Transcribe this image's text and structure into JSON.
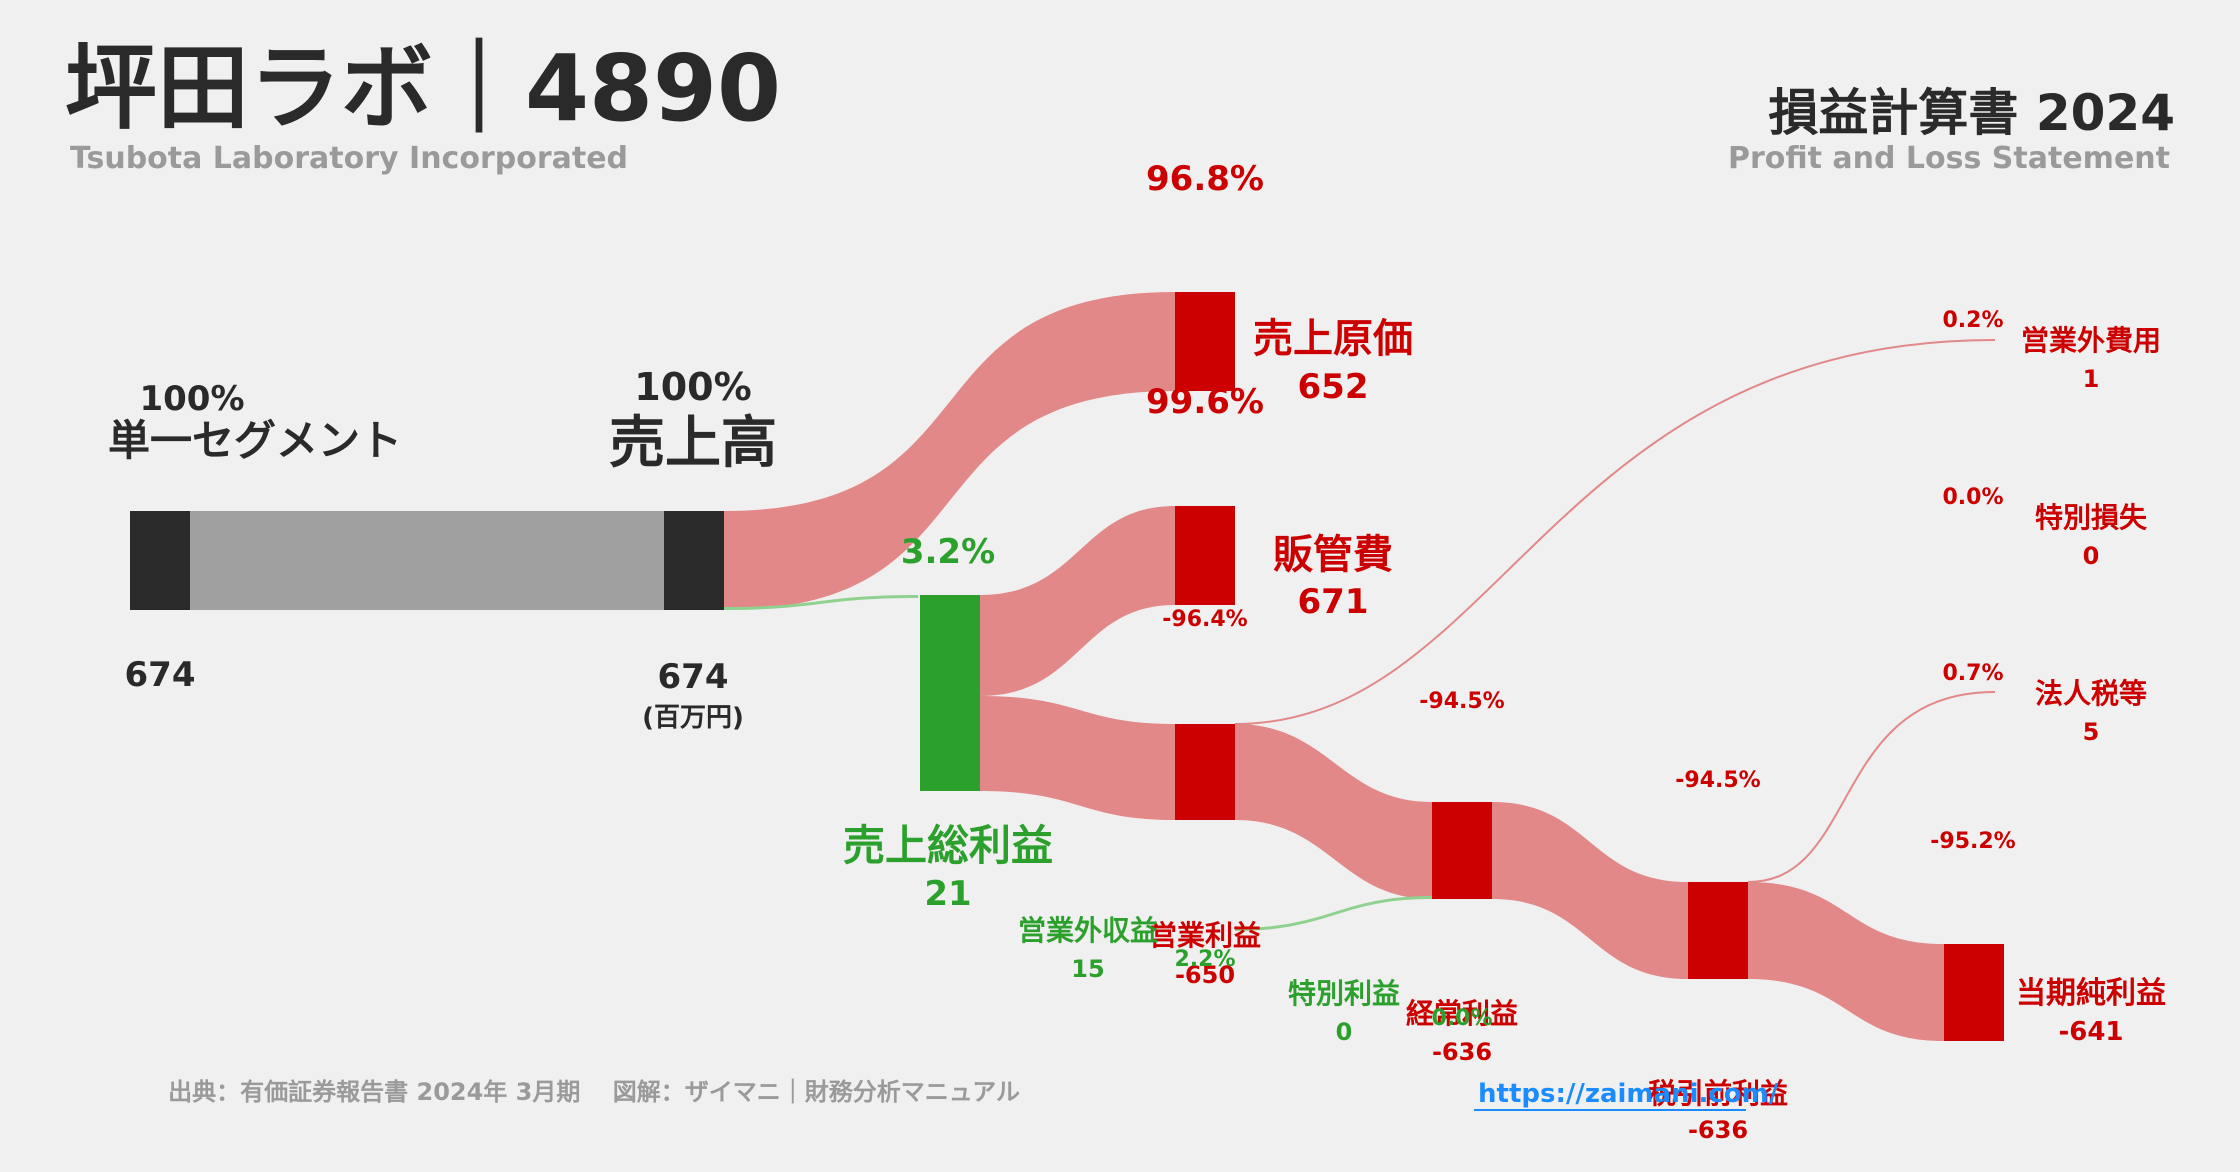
{
  "header": {
    "company": "坪田ラボ｜4890",
    "company_en": "Tsubota Laboratory Incorporated",
    "statement": "損益計算書 2024",
    "statement_en": "Profit and Loss Statement"
  },
  "footer": {
    "source": "出典：有価証券報告書 2024年 3月期　 図解：ザイマニ｜財務分析マニュアル",
    "link": "https://zaimani.com/"
  },
  "colors": {
    "dark": "#2a2a2a",
    "gray": "#a0a0a0",
    "red": "#cc0000",
    "red_flow": "#e38888",
    "green": "#2ca02c",
    "green_flow": "#8fd18f"
  },
  "chart_data": {
    "type": "sankey",
    "unit": "(百万円)",
    "nodes": [
      {
        "id": "segment",
        "name": "単一セグメント",
        "value": "674",
        "pct": "100%"
      },
      {
        "id": "revenue",
        "name": "売上高",
        "value": "674",
        "pct": "100%"
      },
      {
        "id": "cogs",
        "name": "売上原価",
        "value": "652",
        "pct": "96.8%"
      },
      {
        "id": "gross",
        "name": "売上総利益",
        "value": "21",
        "pct": "3.2%"
      },
      {
        "id": "sga",
        "name": "販管費",
        "value": "671",
        "pct": "99.6%"
      },
      {
        "id": "op",
        "name": "営業利益",
        "value": "-650",
        "pct": "-96.4%"
      },
      {
        "id": "nonop_inc",
        "name": "営業外収益",
        "value": "15",
        "pct": "2.2%"
      },
      {
        "id": "nonop_exp",
        "name": "営業外費用",
        "value": "1",
        "pct": "0.2%"
      },
      {
        "id": "ordinary",
        "name": "経常利益",
        "value": "-636",
        "pct": "-94.5%"
      },
      {
        "id": "sp_gain",
        "name": "特別利益",
        "value": "0",
        "pct": "0.0%"
      },
      {
        "id": "sp_loss",
        "name": "特別損失",
        "value": "0",
        "pct": "0.0%"
      },
      {
        "id": "pretax",
        "name": "税引前利益",
        "value": "-636",
        "pct": "-94.5%"
      },
      {
        "id": "tax",
        "name": "法人税等",
        "value": "5",
        "pct": "0.7%"
      },
      {
        "id": "net",
        "name": "当期純利益",
        "value": "-641",
        "pct": "-95.2%"
      }
    ]
  }
}
